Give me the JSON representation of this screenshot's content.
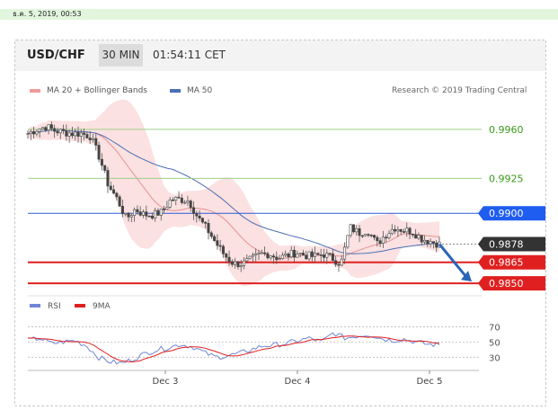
{
  "topbar": {
    "datetime": "ธ.ค. 5, 2019, 00:53"
  },
  "header": {
    "pair": "USD/CHF",
    "timeframe": "30 MIN",
    "time": "01:54:11 CET"
  },
  "legend": [
    {
      "label": "MA 20 + Bollinger Bands",
      "color": "#f29a9a"
    },
    {
      "label": "MA 50",
      "color": "#4a6fb5"
    }
  ],
  "credit": "Research © 2019 Trading Central",
  "rsi_legend": [
    {
      "label": "RSI",
      "color": "#6f86d6"
    },
    {
      "label": "9MA",
      "color": "#e02020"
    }
  ],
  "chart_data": {
    "type": "candlestick",
    "ylim": [
      0.9843,
      0.9983
    ],
    "x_ticks": [
      "Dec 3",
      "Dec 4",
      "Dec 5"
    ],
    "levels": [
      {
        "value": "0.9960",
        "kind": "target"
      },
      {
        "value": "0.9925",
        "kind": "target"
      },
      {
        "value": "0.9900",
        "kind": "pivot"
      },
      {
        "value": "0.9878",
        "kind": "last"
      },
      {
        "value": "0.9865",
        "kind": "support"
      },
      {
        "value": "0.9850",
        "kind": "support"
      }
    ],
    "price_path": [
      0.9957,
      0.996,
      0.9962,
      0.9959,
      0.9958,
      0.9957,
      0.9957,
      0.9955,
      0.994,
      0.992,
      0.991,
      0.9896,
      0.9903,
      0.9899,
      0.9899,
      0.9901,
      0.991,
      0.991,
      0.9909,
      0.9897,
      0.9889,
      0.9879,
      0.987,
      0.9864,
      0.9864,
      0.9867,
      0.9871,
      0.9871,
      0.9868,
      0.987,
      0.9872,
      0.987,
      0.9869,
      0.9871,
      0.9868,
      0.9864,
      0.989,
      0.9886,
      0.9888,
      0.9878,
      0.9885,
      0.989,
      0.9888,
      0.9887,
      0.9882,
      0.988,
      0.9878
    ],
    "rsi": {
      "ticks": [
        70,
        50,
        30
      ],
      "ylim": [
        15,
        80
      ]
    }
  }
}
